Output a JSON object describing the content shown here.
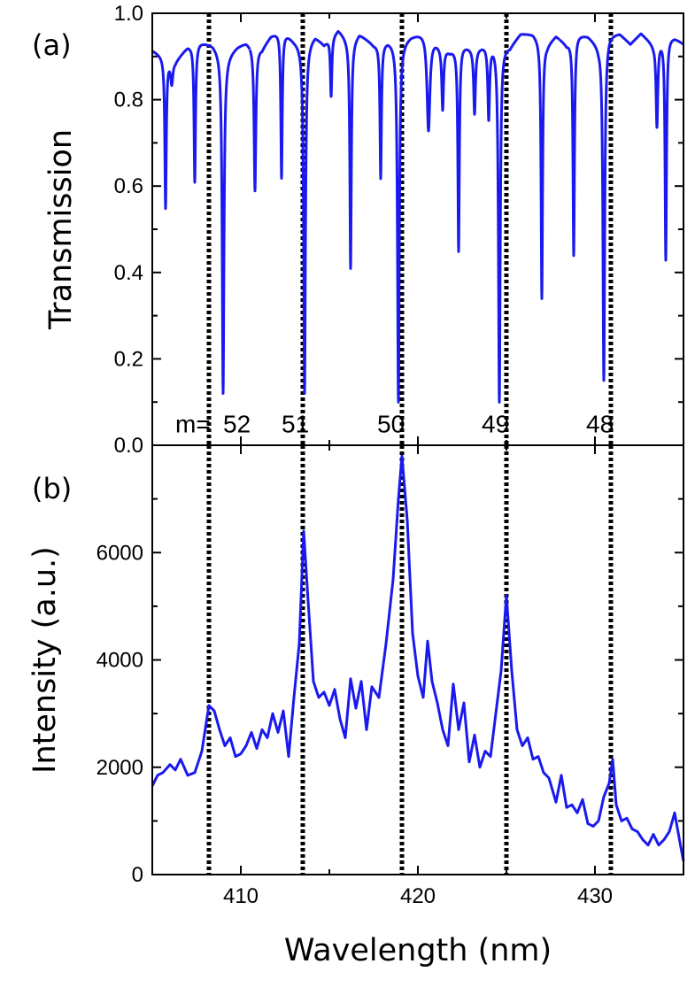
{
  "chart_data": [
    {
      "panel_label": "(a)",
      "type": "line",
      "ylabel": "Transmission",
      "xlabel": "",
      "xlim": [
        405,
        435
      ],
      "ylim": [
        0.0,
        1.0
      ],
      "yticks": [
        0.0,
        0.2,
        0.4,
        0.6,
        0.8,
        1.0
      ],
      "ytick_labels": [
        "0.0",
        "0.2",
        "0.4",
        "0.6",
        "0.8",
        "1.0"
      ],
      "xticks": [
        410,
        420,
        430
      ],
      "line_color": "#1a1aee",
      "baseline_points": [
        [
          405.0,
          0.915
        ],
        [
          405.5,
          0.905
        ],
        [
          406.3,
          0.89
        ],
        [
          407.0,
          0.925
        ],
        [
          407.7,
          0.935
        ],
        [
          408.4,
          0.93
        ],
        [
          409.2,
          0.905
        ],
        [
          409.8,
          0.925
        ],
        [
          410.3,
          0.935
        ],
        [
          411.2,
          0.92
        ],
        [
          411.7,
          0.95
        ],
        [
          412.3,
          0.965
        ],
        [
          413.0,
          0.94
        ],
        [
          413.5,
          0.93
        ],
        [
          414.2,
          0.95
        ],
        [
          414.7,
          0.93
        ],
        [
          415.5,
          0.965
        ],
        [
          416.2,
          0.935
        ],
        [
          416.7,
          0.955
        ],
        [
          417.5,
          0.93
        ],
        [
          418.3,
          0.94
        ],
        [
          419.0,
          0.935
        ],
        [
          419.6,
          0.95
        ],
        [
          420.4,
          0.96
        ],
        [
          421.2,
          0.93
        ],
        [
          421.8,
          0.915
        ],
        [
          422.5,
          0.93
        ],
        [
          423.2,
          0.92
        ],
        [
          423.8,
          0.93
        ],
        [
          424.5,
          0.935
        ],
        [
          425.2,
          0.925
        ],
        [
          425.8,
          0.955
        ],
        [
          426.5,
          0.955
        ],
        [
          427.3,
          0.93
        ],
        [
          427.8,
          0.95
        ],
        [
          428.4,
          0.93
        ],
        [
          429.0,
          0.955
        ],
        [
          429.6,
          0.95
        ],
        [
          430.2,
          0.93
        ],
        [
          430.8,
          0.955
        ],
        [
          431.4,
          0.955
        ],
        [
          432.0,
          0.93
        ],
        [
          432.6,
          0.955
        ],
        [
          433.3,
          0.93
        ],
        [
          434.0,
          0.95
        ],
        [
          434.5,
          0.945
        ],
        [
          435.0,
          0.93
        ]
      ],
      "dips": [
        {
          "x": 405.75,
          "depth": 0.55,
          "width": 0.1
        },
        {
          "x": 406.1,
          "depth": 0.84,
          "width": 0.15
        },
        {
          "x": 407.4,
          "depth": 0.61,
          "width": 0.1
        },
        {
          "x": 409.0,
          "depth": 0.12,
          "width": 0.12
        },
        {
          "x": 410.8,
          "depth": 0.59,
          "width": 0.12
        },
        {
          "x": 412.3,
          "depth": 0.62,
          "width": 0.1
        },
        {
          "x": 413.6,
          "depth": 0.12,
          "width": 0.12
        },
        {
          "x": 415.1,
          "depth": 0.81,
          "width": 0.1
        },
        {
          "x": 416.2,
          "depth": 0.41,
          "width": 0.1
        },
        {
          "x": 417.9,
          "depth": 0.62,
          "width": 0.1
        },
        {
          "x": 418.9,
          "depth": 0.1,
          "width": 0.12
        },
        {
          "x": 420.6,
          "depth": 0.73,
          "width": 0.2
        },
        {
          "x": 421.4,
          "depth": 0.78,
          "width": 0.12
        },
        {
          "x": 422.3,
          "depth": 0.45,
          "width": 0.1
        },
        {
          "x": 423.2,
          "depth": 0.77,
          "width": 0.12
        },
        {
          "x": 424.0,
          "depth": 0.76,
          "width": 0.12
        },
        {
          "x": 424.6,
          "depth": 0.1,
          "width": 0.12
        },
        {
          "x": 427.0,
          "depth": 0.34,
          "width": 0.1
        },
        {
          "x": 428.8,
          "depth": 0.44,
          "width": 0.1
        },
        {
          "x": 430.5,
          "depth": 0.15,
          "width": 0.12
        },
        {
          "x": 433.5,
          "depth": 0.74,
          "width": 0.12
        },
        {
          "x": 434.0,
          "depth": 0.43,
          "width": 0.1
        }
      ],
      "gaps": [
        410.5,
        428.0
      ],
      "mode_labels": [
        {
          "text": "m=",
          "x": 406.3
        },
        {
          "text": "52",
          "x": 409.0
        },
        {
          "text": "51",
          "x": 412.3
        },
        {
          "text": "50",
          "x": 417.7
        },
        {
          "text": "49",
          "x": 423.6
        },
        {
          "text": "48",
          "x": 429.5
        }
      ],
      "mode_label_y": 0.05
    },
    {
      "panel_label": "(b)",
      "type": "line",
      "ylabel": "Intensity (a.u.)",
      "xlabel": "Wavelength (nm)",
      "xlim": [
        405,
        435
      ],
      "ylim": [
        0,
        8000
      ],
      "yticks": [
        0,
        2000,
        4000,
        6000
      ],
      "ytick_labels": [
        "0",
        "2000",
        "4000",
        "6000"
      ],
      "xticks": [
        410,
        420,
        430
      ],
      "xtick_labels": [
        "410",
        "420",
        "430"
      ],
      "line_color": "#1a1aee",
      "points": [
        [
          405.0,
          1650
        ],
        [
          405.3,
          1850
        ],
        [
          405.6,
          1900
        ],
        [
          406.0,
          2050
        ],
        [
          406.3,
          1950
        ],
        [
          406.6,
          2150
        ],
        [
          407.0,
          1850
        ],
        [
          407.4,
          1900
        ],
        [
          407.8,
          2300
        ],
        [
          408.2,
          3150
        ],
        [
          408.5,
          3050
        ],
        [
          408.8,
          2700
        ],
        [
          409.1,
          2400
        ],
        [
          409.4,
          2550
        ],
        [
          409.7,
          2200
        ],
        [
          410.0,
          2250
        ],
        [
          410.3,
          2400
        ],
        [
          410.6,
          2650
        ],
        [
          410.9,
          2350
        ],
        [
          411.2,
          2700
        ],
        [
          411.5,
          2550
        ],
        [
          411.8,
          3000
        ],
        [
          412.1,
          2650
        ],
        [
          412.4,
          3050
        ],
        [
          412.7,
          2200
        ],
        [
          413.0,
          3300
        ],
        [
          413.3,
          4300
        ],
        [
          413.55,
          6400
        ],
        [
          413.8,
          5100
        ],
        [
          414.1,
          3600
        ],
        [
          414.4,
          3300
        ],
        [
          414.7,
          3400
        ],
        [
          415.0,
          3150
        ],
        [
          415.3,
          3450
        ],
        [
          415.6,
          2900
        ],
        [
          415.9,
          2550
        ],
        [
          416.2,
          3650
        ],
        [
          416.5,
          3100
        ],
        [
          416.8,
          3600
        ],
        [
          417.1,
          2700
        ],
        [
          417.4,
          3500
        ],
        [
          417.8,
          3300
        ],
        [
          418.2,
          4300
        ],
        [
          418.6,
          5500
        ],
        [
          418.9,
          7000
        ],
        [
          419.1,
          7800
        ],
        [
          419.4,
          6600
        ],
        [
          419.7,
          4500
        ],
        [
          420.0,
          3700
        ],
        [
          420.3,
          3300
        ],
        [
          420.55,
          4350
        ],
        [
          420.8,
          3600
        ],
        [
          421.1,
          3200
        ],
        [
          421.4,
          2700
        ],
        [
          421.7,
          2400
        ],
        [
          422.0,
          3550
        ],
        [
          422.3,
          2700
        ],
        [
          422.6,
          3200
        ],
        [
          422.9,
          2100
        ],
        [
          423.2,
          2600
        ],
        [
          423.5,
          2000
        ],
        [
          423.8,
          2300
        ],
        [
          424.1,
          2200
        ],
        [
          424.4,
          3000
        ],
        [
          424.7,
          3800
        ],
        [
          425.0,
          5200
        ],
        [
          425.3,
          3800
        ],
        [
          425.6,
          2700
        ],
        [
          425.9,
          2400
        ],
        [
          426.2,
          2550
        ],
        [
          426.5,
          2150
        ],
        [
          426.8,
          2200
        ],
        [
          427.1,
          1900
        ],
        [
          427.4,
          1800
        ],
        [
          427.8,
          1350
        ],
        [
          428.1,
          1850
        ],
        [
          428.4,
          1250
        ],
        [
          428.7,
          1300
        ],
        [
          429.0,
          1150
        ],
        [
          429.3,
          1400
        ],
        [
          429.6,
          950
        ],
        [
          429.9,
          900
        ],
        [
          430.2,
          1000
        ],
        [
          430.5,
          1450
        ],
        [
          430.8,
          1700
        ],
        [
          431.0,
          2150
        ],
        [
          431.2,
          1300
        ],
        [
          431.5,
          1000
        ],
        [
          431.8,
          1050
        ],
        [
          432.1,
          850
        ],
        [
          432.4,
          800
        ],
        [
          432.7,
          650
        ],
        [
          433.0,
          550
        ],
        [
          433.3,
          750
        ],
        [
          433.6,
          550
        ],
        [
          433.9,
          650
        ],
        [
          434.2,
          800
        ],
        [
          434.5,
          1150
        ],
        [
          434.8,
          600
        ],
        [
          435.0,
          250
        ]
      ]
    }
  ],
  "vertical_markers": [
    408.2,
    413.5,
    419.1,
    425.0,
    430.9
  ]
}
